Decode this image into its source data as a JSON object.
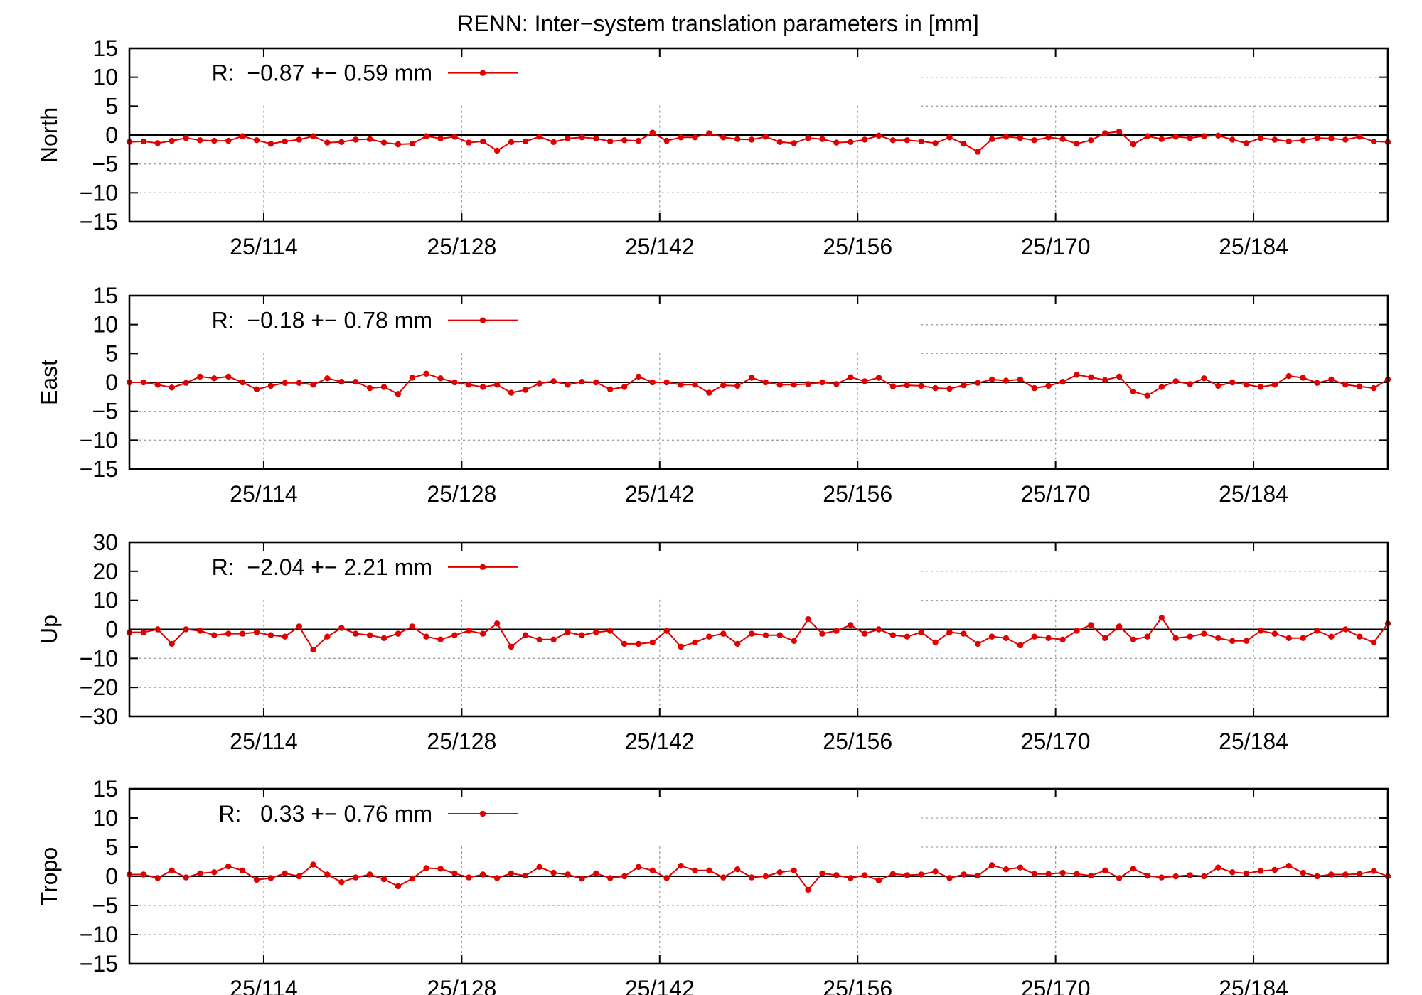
{
  "chart_title": "RENN: Inter−system translation parameters in [mm]",
  "colors": {
    "series": "#e00000",
    "axis": "#000000",
    "grid": "#a0a0a0"
  },
  "chart_data": {
    "type": "line",
    "x_axis": {
      "tick_labels": [
        "25/114",
        "25/128",
        "25/142",
        "25/156",
        "25/170",
        "25/184"
      ],
      "tick_days": [
        114,
        128,
        142,
        156,
        170,
        184
      ],
      "range": [
        104.5,
        193.5
      ]
    },
    "x": [
      104.5,
      105.5,
      106.5,
      107.5,
      108.5,
      109.5,
      110.5,
      111.5,
      112.5,
      113.5,
      114.5,
      115.5,
      116.5,
      117.5,
      118.5,
      119.5,
      120.5,
      121.5,
      122.5,
      123.5,
      124.5,
      125.5,
      126.5,
      127.5,
      128.5,
      129.5,
      130.5,
      131.5,
      132.5,
      133.5,
      134.5,
      135.5,
      136.5,
      137.5,
      138.5,
      139.5,
      140.5,
      141.5,
      142.5,
      143.5,
      144.5,
      145.5,
      146.5,
      147.5,
      148.5,
      149.5,
      150.5,
      151.5,
      152.5,
      153.5,
      154.5,
      155.5,
      156.5,
      157.5,
      158.5,
      159.5,
      160.5,
      161.5,
      162.5,
      163.5,
      164.5,
      165.5,
      166.5,
      167.5,
      168.5,
      169.5,
      170.5,
      171.5,
      172.5,
      173.5,
      174.5,
      175.5,
      176.5,
      177.5,
      178.5,
      179.5,
      180.5,
      181.5,
      182.5,
      183.5,
      184.5,
      185.5,
      186.5,
      187.5,
      188.5,
      189.5,
      190.5,
      191.5,
      192.5,
      193.5
    ],
    "panels": [
      {
        "ylabel": "North",
        "ylim": [
          -15,
          15
        ],
        "yticks": [
          15,
          10,
          5,
          0,
          -5,
          -10,
          -15
        ],
        "legend": "R:  −0.87 +− 0.59 mm",
        "values": [
          -1.2,
          -1.1,
          -1.4,
          -1.0,
          -0.5,
          -0.9,
          -1.0,
          -1.0,
          -0.2,
          -0.9,
          -1.5,
          -1.1,
          -0.8,
          -0.2,
          -1.3,
          -1.2,
          -0.8,
          -0.7,
          -1.3,
          -1.6,
          -1.5,
          -0.2,
          -0.6,
          -0.3,
          -1.3,
          -1.1,
          -2.7,
          -1.2,
          -1.1,
          -0.3,
          -1.2,
          -0.6,
          -0.4,
          -0.6,
          -1.1,
          -0.9,
          -1.0,
          0.4,
          -1.0,
          -0.4,
          -0.4,
          0.3,
          -0.4,
          -0.7,
          -0.8,
          -0.3,
          -1.2,
          -1.4,
          -0.5,
          -0.7,
          -1.3,
          -1.2,
          -0.8,
          -0.1,
          -0.9,
          -0.9,
          -1.1,
          -1.4,
          -0.4,
          -1.5,
          -2.9,
          -0.7,
          -0.3,
          -0.5,
          -0.9,
          -0.4,
          -0.7,
          -1.5,
          -0.9,
          0.3,
          0.6,
          -1.6,
          -0.2,
          -0.7,
          -0.3,
          -0.5,
          -0.2,
          -0.1,
          -0.8,
          -1.4,
          -0.5,
          -0.8,
          -1.1,
          -0.9,
          -0.5,
          -0.6,
          -0.8,
          -0.3,
          -1.1,
          -1.2
        ]
      },
      {
        "ylabel": "East",
        "ylim": [
          -15,
          15
        ],
        "yticks": [
          15,
          10,
          5,
          0,
          -5,
          -10,
          -15
        ],
        "legend": "R:  −0.18 +− 0.78 mm",
        "values": [
          0.0,
          0.0,
          -0.4,
          -0.9,
          -0.1,
          1.0,
          0.7,
          1.0,
          0.0,
          -1.2,
          -0.6,
          -0.1,
          -0.1,
          -0.4,
          0.7,
          0.1,
          0.1,
          -1.0,
          -0.8,
          -2.0,
          0.8,
          1.5,
          0.7,
          0.0,
          -0.4,
          -0.8,
          -0.4,
          -1.8,
          -1.3,
          -0.2,
          0.2,
          -0.4,
          0.1,
          0.0,
          -1.2,
          -0.8,
          1.0,
          0.0,
          0.0,
          -0.4,
          -0.4,
          -1.8,
          -0.5,
          -0.6,
          0.8,
          0.0,
          -0.4,
          -0.4,
          -0.3,
          0.0,
          -0.3,
          0.9,
          0.2,
          0.8,
          -0.7,
          -0.5,
          -0.6,
          -1.0,
          -1.1,
          -0.5,
          -0.1,
          0.5,
          0.3,
          0.5,
          -1.0,
          -0.6,
          0.1,
          1.3,
          0.9,
          0.4,
          1.0,
          -1.6,
          -2.3,
          -0.8,
          0.2,
          -0.3,
          0.7,
          -0.6,
          0.0,
          -0.4,
          -0.8,
          -0.4,
          1.1,
          0.8,
          -0.1,
          0.5,
          -0.4,
          -0.7,
          -1.0,
          0.5
        ]
      },
      {
        "ylabel": "Up",
        "ylim": [
          -30,
          30
        ],
        "yticks": [
          30,
          20,
          10,
          0,
          -10,
          -20,
          -30
        ],
        "legend": "R:  −2.04 +− 2.21 mm",
        "values": [
          -1.0,
          -1.0,
          0.0,
          -5.0,
          0.0,
          -0.5,
          -2.0,
          -1.5,
          -1.5,
          -1.0,
          -2.0,
          -2.5,
          1.0,
          -7.0,
          -2.5,
          0.5,
          -1.5,
          -2.0,
          -3.0,
          -1.5,
          1.0,
          -2.5,
          -3.5,
          -2.0,
          -0.5,
          -1.5,
          2.0,
          -6.0,
          -2.0,
          -3.5,
          -3.5,
          -1.0,
          -2.0,
          -1.0,
          -0.5,
          -5.0,
          -5.0,
          -4.5,
          -0.5,
          -6.0,
          -4.5,
          -2.5,
          -1.5,
          -5.0,
          -1.5,
          -2.0,
          -2.0,
          -4.0,
          3.5,
          -1.5,
          -0.5,
          1.5,
          -1.5,
          0.0,
          -2.0,
          -2.5,
          -1.0,
          -4.5,
          -1.0,
          -1.5,
          -5.0,
          -2.5,
          -3.0,
          -5.5,
          -2.5,
          -3.0,
          -3.5,
          -0.5,
          1.5,
          -3.0,
          1.0,
          -3.5,
          -2.5,
          4.0,
          -3.0,
          -2.5,
          -1.5,
          -3.0,
          -4.0,
          -4.0,
          -0.5,
          -1.5,
          -3.0,
          -3.0,
          -0.5,
          -2.5,
          0.0,
          -2.5,
          -4.5,
          2.0
        ]
      },
      {
        "ylabel": "Tropo",
        "ylim": [
          -15,
          15
        ],
        "yticks": [
          15,
          10,
          5,
          0,
          -5,
          -10,
          -15
        ],
        "legend": "R:   0.33 +− 0.76 mm",
        "values": [
          0.3,
          0.3,
          -0.3,
          1.0,
          -0.2,
          0.5,
          0.7,
          1.7,
          1.0,
          -0.6,
          -0.3,
          0.5,
          0.0,
          2.0,
          0.3,
          -1.0,
          -0.2,
          0.3,
          -0.5,
          -1.7,
          -0.4,
          1.4,
          1.3,
          0.5,
          -0.2,
          0.3,
          -0.3,
          0.5,
          0.1,
          1.6,
          0.6,
          0.3,
          -0.4,
          0.5,
          -0.3,
          0.0,
          1.6,
          1.0,
          -0.3,
          1.8,
          1.0,
          1.0,
          -0.2,
          1.2,
          -0.2,
          0.0,
          0.7,
          1.0,
          -2.3,
          0.5,
          0.2,
          -0.3,
          0.2,
          -0.7,
          0.4,
          0.2,
          0.3,
          0.8,
          -0.3,
          0.3,
          0.1,
          1.9,
          1.2,
          1.5,
          0.4,
          0.4,
          0.6,
          0.4,
          0.1,
          1.0,
          -0.3,
          1.3,
          0.1,
          -0.2,
          0.0,
          0.2,
          0.0,
          1.5,
          0.7,
          0.5,
          0.9,
          1.1,
          1.8,
          0.6,
          0.0,
          0.3,
          0.3,
          0.4,
          0.9,
          0.0
        ]
      }
    ]
  }
}
